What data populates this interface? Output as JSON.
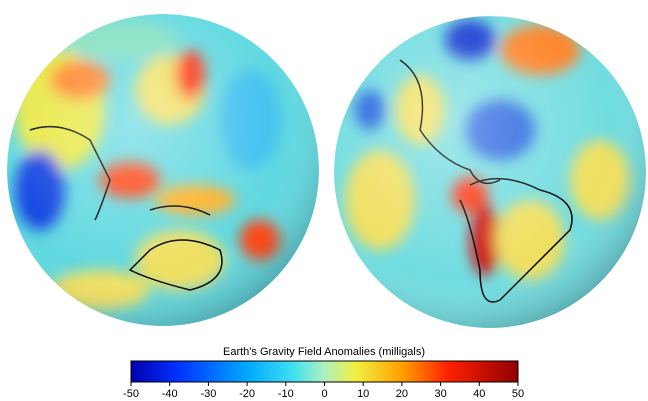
{
  "colorbar": {
    "title": "Earth's Gravity Field Anomalies (milligals)",
    "range": [
      -50,
      50
    ],
    "ticks": [
      -50,
      -40,
      -30,
      -20,
      -10,
      0,
      10,
      20,
      30,
      40,
      50
    ]
  }
}
